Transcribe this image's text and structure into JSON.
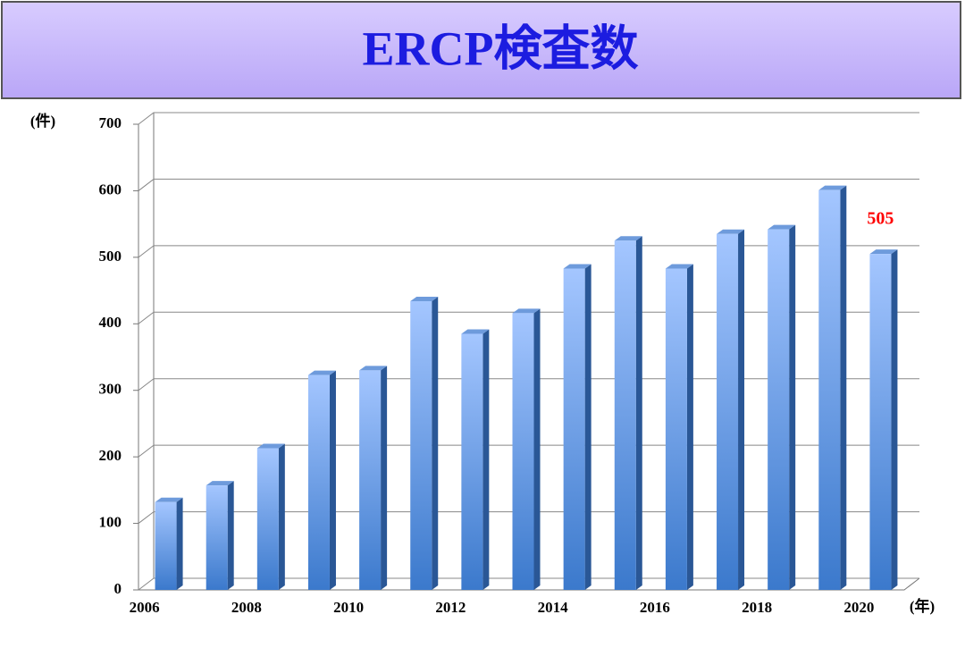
{
  "chart_data": {
    "type": "bar3d",
    "title": "ERCP検査数",
    "y_unit": "(件)",
    "x_unit": "(年)",
    "categories": [
      "2006",
      null,
      "2008",
      null,
      "2010",
      null,
      "2012",
      null,
      "2014",
      null,
      "2016",
      null,
      "2018",
      null,
      "2020"
    ],
    "values": [
      132,
      157,
      213,
      323,
      330,
      434,
      385,
      416,
      483,
      525,
      483,
      535,
      542,
      601,
      505
    ],
    "ylim": [
      0,
      700
    ],
    "yticks": [
      0,
      100,
      200,
      300,
      400,
      500,
      600,
      700
    ],
    "grid": true,
    "color": "#4a86d8",
    "label_last": true,
    "label_color": "#ff0000"
  }
}
